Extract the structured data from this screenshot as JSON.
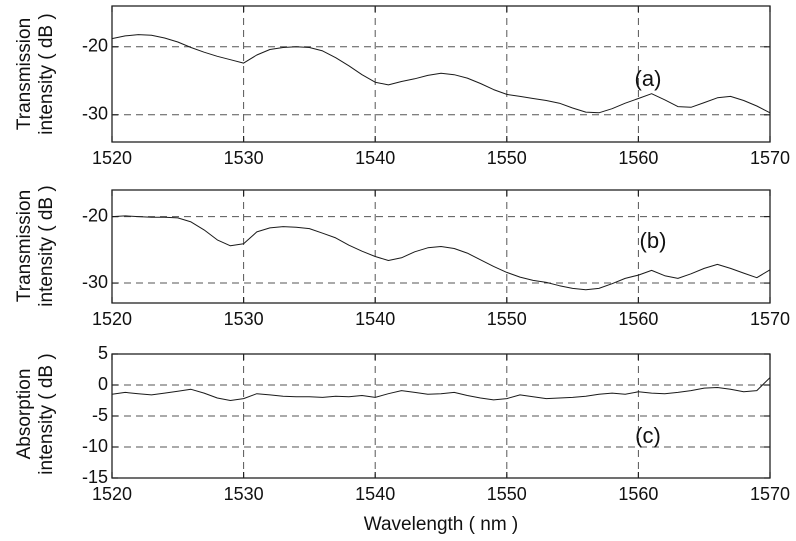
{
  "figure": {
    "xlabel": "Wavelength ( nm )"
  },
  "chart_data": [
    {
      "type": "line",
      "panel_label": "(a)",
      "ylabel_lines": [
        "Transmission",
        "intensity ( dB )"
      ],
      "xlim": [
        1520,
        1570
      ],
      "ylim": [
        -34,
        -14
      ],
      "xticks": [
        1520,
        1530,
        1540,
        1550,
        1560,
        1570
      ],
      "xtick_labels": [
        "1520",
        "1530",
        "1540",
        "1550",
        "1560",
        "1570"
      ],
      "yticks": [
        -20,
        -30
      ],
      "ytick_labels": [
        "-20",
        "-30"
      ],
      "grid": true,
      "series": [
        {
          "x": [
            1520,
            1521,
            1522,
            1523,
            1524,
            1525,
            1526,
            1527,
            1528,
            1529,
            1530,
            1531,
            1532,
            1533,
            1534,
            1535,
            1536,
            1537,
            1538,
            1539,
            1540,
            1541,
            1542,
            1543,
            1544,
            1545,
            1546,
            1547,
            1548,
            1549,
            1550,
            1551,
            1552,
            1553,
            1554,
            1555,
            1556,
            1557,
            1558,
            1559,
            1560,
            1561,
            1562,
            1563,
            1564,
            1565,
            1566,
            1567,
            1568,
            1569,
            1570
          ],
          "y": [
            -18.8,
            -18.4,
            -18.2,
            -18.3,
            -18.7,
            -19.3,
            -20.1,
            -20.8,
            -21.4,
            -21.9,
            -22.4,
            -21.2,
            -20.4,
            -20.1,
            -20.0,
            -20.1,
            -20.6,
            -21.6,
            -22.8,
            -24.1,
            -25.2,
            -25.6,
            -25.1,
            -24.7,
            -24.2,
            -23.9,
            -24.1,
            -24.6,
            -25.4,
            -26.3,
            -27.0,
            -27.3,
            -27.6,
            -27.9,
            -28.3,
            -29.0,
            -29.6,
            -29.7,
            -29.1,
            -28.3,
            -27.6,
            -26.9,
            -27.8,
            -28.8,
            -28.9,
            -28.2,
            -27.5,
            -27.3,
            -27.9,
            -28.7,
            -29.7
          ]
        }
      ]
    },
    {
      "type": "line",
      "panel_label": "(b)",
      "ylabel_lines": [
        "Transmission",
        "intensity ( dB )"
      ],
      "xlim": [
        1520,
        1570
      ],
      "ylim": [
        -33,
        -16
      ],
      "xticks": [
        1520,
        1530,
        1540,
        1550,
        1560,
        1570
      ],
      "xtick_labels": [
        "1520",
        "1530",
        "1540",
        "1550",
        "1560",
        "1570"
      ],
      "yticks": [
        -20,
        -30
      ],
      "ytick_labels": [
        "-20",
        "-30"
      ],
      "grid": true,
      "series": [
        {
          "x": [
            1520,
            1521,
            1522,
            1523,
            1524,
            1525,
            1526,
            1527,
            1528,
            1529,
            1530,
            1531,
            1532,
            1533,
            1534,
            1535,
            1536,
            1537,
            1538,
            1539,
            1540,
            1541,
            1542,
            1543,
            1544,
            1545,
            1546,
            1547,
            1548,
            1549,
            1550,
            1551,
            1552,
            1553,
            1554,
            1555,
            1556,
            1557,
            1558,
            1559,
            1560,
            1561,
            1562,
            1563,
            1564,
            1565,
            1566,
            1567,
            1568,
            1569,
            1570
          ],
          "y": [
            -20.0,
            -19.9,
            -20.0,
            -20.1,
            -20.1,
            -20.2,
            -20.8,
            -22.0,
            -23.5,
            -24.4,
            -24.1,
            -22.3,
            -21.7,
            -21.5,
            -21.6,
            -21.8,
            -22.5,
            -23.2,
            -24.3,
            -25.2,
            -26.0,
            -26.6,
            -26.2,
            -25.3,
            -24.7,
            -24.5,
            -24.8,
            -25.5,
            -26.5,
            -27.5,
            -28.4,
            -29.1,
            -29.6,
            -29.9,
            -30.4,
            -30.8,
            -31.0,
            -30.8,
            -30.1,
            -29.3,
            -28.8,
            -28.1,
            -28.9,
            -29.3,
            -28.6,
            -27.8,
            -27.2,
            -27.8,
            -28.5,
            -29.2,
            -28.0
          ]
        }
      ]
    },
    {
      "type": "line",
      "panel_label": "(c)",
      "ylabel_lines": [
        "Absorption",
        "intensity ( dB )"
      ],
      "xlim": [
        1520,
        1570
      ],
      "ylim": [
        -15,
        5
      ],
      "xticks": [
        1520,
        1530,
        1540,
        1550,
        1560,
        1570
      ],
      "xtick_labels": [
        "1520",
        "1530",
        "1540",
        "1550",
        "1560",
        "1570"
      ],
      "yticks": [
        5,
        0,
        -5,
        -10,
        -15
      ],
      "ytick_labels": [
        "5",
        "0",
        "-5",
        "-10",
        "-15"
      ],
      "grid": true,
      "series": [
        {
          "x": [
            1520,
            1521,
            1522,
            1523,
            1524,
            1525,
            1526,
            1527,
            1528,
            1529,
            1530,
            1531,
            1532,
            1533,
            1534,
            1535,
            1536,
            1537,
            1538,
            1539,
            1540,
            1541,
            1542,
            1543,
            1544,
            1545,
            1546,
            1547,
            1548,
            1549,
            1550,
            1551,
            1552,
            1553,
            1554,
            1555,
            1556,
            1557,
            1558,
            1559,
            1560,
            1561,
            1562,
            1563,
            1564,
            1565,
            1566,
            1567,
            1568,
            1569,
            1570
          ],
          "y": [
            -1.5,
            -1.2,
            -1.4,
            -1.6,
            -1.3,
            -1.0,
            -0.7,
            -1.3,
            -2.1,
            -2.5,
            -2.2,
            -1.4,
            -1.6,
            -1.8,
            -1.9,
            -1.9,
            -2.0,
            -1.8,
            -1.9,
            -1.7,
            -2.0,
            -1.4,
            -0.9,
            -1.2,
            -1.5,
            -1.4,
            -1.2,
            -1.7,
            -2.1,
            -2.4,
            -2.2,
            -1.6,
            -1.9,
            -2.2,
            -2.1,
            -2.0,
            -1.8,
            -1.5,
            -1.3,
            -1.5,
            -1.1,
            -1.3,
            -1.4,
            -1.2,
            -0.9,
            -0.5,
            -0.4,
            -0.7,
            -1.1,
            -0.9,
            1.2
          ]
        }
      ]
    }
  ]
}
